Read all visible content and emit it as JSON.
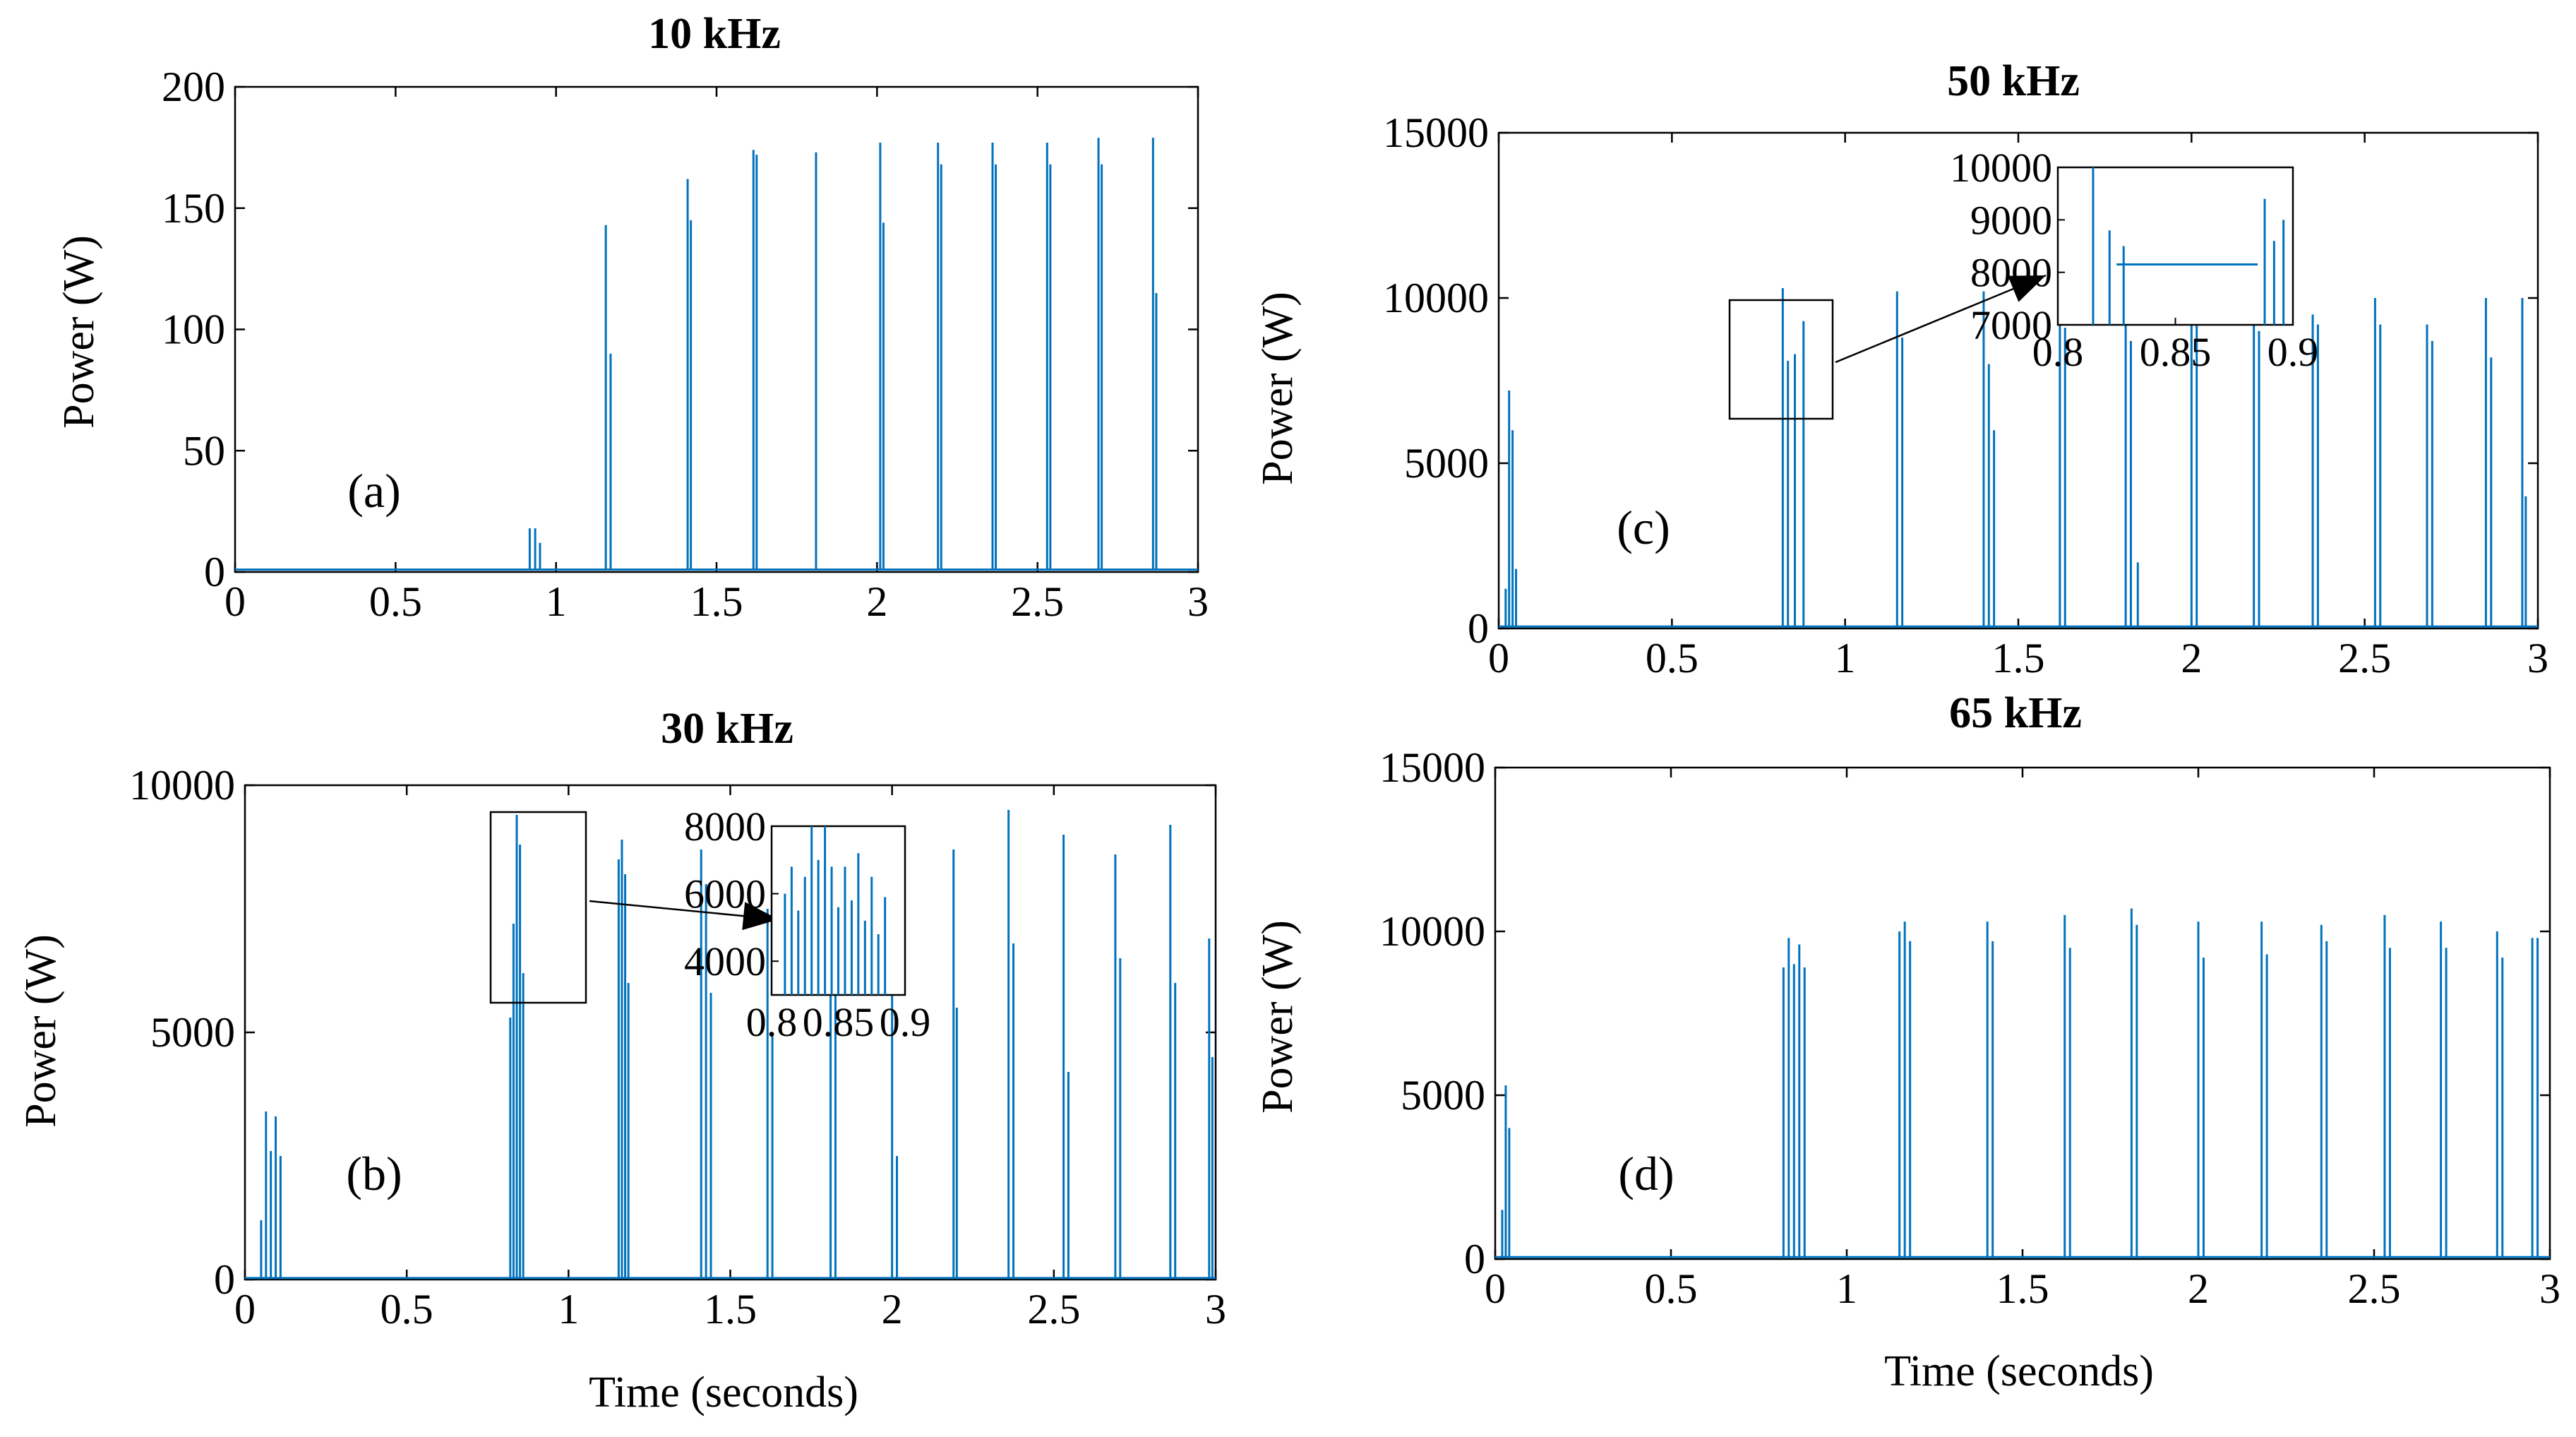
{
  "figure": {
    "xlabel": "Time (seconds)",
    "ylabel": "Power (W)",
    "line_color": "#0072BD"
  },
  "chart_data": [
    {
      "type": "line",
      "id": "a",
      "title": "10 kHz",
      "label": "(a)",
      "xlabel": "",
      "ylabel": "Power (W)",
      "xlim": [
        0,
        3
      ],
      "ylim": [
        0,
        200
      ],
      "xticks": [
        "0",
        "0.5",
        "1",
        "1.5",
        "2",
        "2.5",
        "3"
      ],
      "yticks": [
        "0",
        "50",
        "100",
        "150",
        "200"
      ],
      "baseline": 1,
      "series": [
        {
          "name": "Power",
          "pulses": [
            {
              "t": 0.918,
              "p": 18
            },
            {
              "t": 0.935,
              "p": 18
            },
            {
              "t": 0.95,
              "p": 12
            },
            {
              "t": 1.155,
              "p": 143
            },
            {
              "t": 1.17,
              "p": 90
            },
            {
              "t": 1.41,
              "p": 162
            },
            {
              "t": 1.42,
              "p": 145
            },
            {
              "t": 1.615,
              "p": 174
            },
            {
              "t": 1.625,
              "p": 172
            },
            {
              "t": 1.81,
              "p": 173
            },
            {
              "t": 2.01,
              "p": 177
            },
            {
              "t": 2.02,
              "p": 144
            },
            {
              "t": 2.19,
              "p": 177
            },
            {
              "t": 2.2,
              "p": 168
            },
            {
              "t": 2.36,
              "p": 177
            },
            {
              "t": 2.37,
              "p": 168
            },
            {
              "t": 2.53,
              "p": 177
            },
            {
              "t": 2.54,
              "p": 168
            },
            {
              "t": 2.69,
              "p": 179
            },
            {
              "t": 2.7,
              "p": 168
            },
            {
              "t": 2.86,
              "p": 179
            },
            {
              "t": 2.87,
              "p": 115
            }
          ]
        }
      ]
    },
    {
      "type": "line",
      "id": "b",
      "title": "30 kHz",
      "label": "(b)",
      "xlabel": "Time (seconds)",
      "ylabel": "Power (W)",
      "xlim": [
        0,
        3
      ],
      "ylim": [
        0,
        10000
      ],
      "xticks": [
        "0",
        "0.5",
        "1",
        "1.5",
        "2",
        "2.5",
        "3"
      ],
      "yticks": [
        "0",
        "5000",
        "10000"
      ],
      "baseline": 30,
      "series": [
        {
          "name": "Power",
          "pulses": [
            {
              "t": 0.05,
              "p": 1200
            },
            {
              "t": 0.065,
              "p": 3400
            },
            {
              "t": 0.08,
              "p": 2600
            },
            {
              "t": 0.095,
              "p": 3300
            },
            {
              "t": 0.11,
              "p": 2500
            },
            {
              "t": 0.82,
              "p": 5300
            },
            {
              "t": 0.83,
              "p": 7200
            },
            {
              "t": 0.84,
              "p": 9400
            },
            {
              "t": 0.85,
              "p": 8800
            },
            {
              "t": 0.86,
              "p": 6200
            },
            {
              "t": 1.155,
              "p": 8500
            },
            {
              "t": 1.165,
              "p": 8900
            },
            {
              "t": 1.175,
              "p": 8200
            },
            {
              "t": 1.185,
              "p": 6000
            },
            {
              "t": 1.41,
              "p": 8700
            },
            {
              "t": 1.425,
              "p": 8000
            },
            {
              "t": 1.44,
              "p": 5800
            },
            {
              "t": 1.615,
              "p": 7500
            },
            {
              "t": 1.63,
              "p": 5000
            },
            {
              "t": 1.81,
              "p": 8700
            },
            {
              "t": 1.825,
              "p": 7200
            },
            {
              "t": 2.0,
              "p": 9000
            },
            {
              "t": 2.015,
              "p": 2500
            },
            {
              "t": 2.19,
              "p": 8700
            },
            {
              "t": 2.2,
              "p": 5500
            },
            {
              "t": 2.36,
              "p": 9500
            },
            {
              "t": 2.375,
              "p": 6800
            },
            {
              "t": 2.53,
              "p": 9000
            },
            {
              "t": 2.545,
              "p": 4200
            },
            {
              "t": 2.69,
              "p": 8600
            },
            {
              "t": 2.705,
              "p": 6500
            },
            {
              "t": 2.86,
              "p": 9200
            },
            {
              "t": 2.875,
              "p": 6000
            },
            {
              "t": 2.98,
              "p": 6900
            },
            {
              "t": 2.99,
              "p": 4500
            }
          ]
        }
      ],
      "inset": {
        "xticks": [
          "0.8",
          "0.85",
          "0.9"
        ],
        "yticks": [
          "4000",
          "6000",
          "8000"
        ],
        "xlim": [
          0.8,
          0.9
        ],
        "ylim": [
          3000,
          8000
        ],
        "pulses": [
          {
            "t": 0.81,
            "p": 6000
          },
          {
            "t": 0.815,
            "p": 6800
          },
          {
            "t": 0.82,
            "p": 5500
          },
          {
            "t": 0.825,
            "p": 6500
          },
          {
            "t": 0.83,
            "p": 8000
          },
          {
            "t": 0.835,
            "p": 7000
          },
          {
            "t": 0.84,
            "p": 8000
          },
          {
            "t": 0.845,
            "p": 6800
          },
          {
            "t": 0.85,
            "p": 5600
          },
          {
            "t": 0.855,
            "p": 6800
          },
          {
            "t": 0.86,
            "p": 5800
          },
          {
            "t": 0.865,
            "p": 7200
          },
          {
            "t": 0.87,
            "p": 5200
          },
          {
            "t": 0.875,
            "p": 6500
          },
          {
            "t": 0.88,
            "p": 4800
          },
          {
            "t": 0.885,
            "p": 5900
          }
        ]
      }
    },
    {
      "type": "line",
      "id": "c",
      "title": "50 kHz",
      "label": "(c)",
      "xlabel": "",
      "ylabel": "Power (W)",
      "xlim": [
        0,
        3
      ],
      "ylim": [
        0,
        15000
      ],
      "xticks": [
        "0",
        "0.5",
        "1",
        "1.5",
        "2",
        "2.5",
        "3"
      ],
      "yticks": [
        "0",
        "5000",
        "10000",
        "15000"
      ],
      "baseline": 60,
      "series": [
        {
          "name": "Power",
          "pulses": [
            {
              "t": 0.02,
              "p": 1200
            },
            {
              "t": 0.03,
              "p": 7200
            },
            {
              "t": 0.04,
              "p": 6000
            },
            {
              "t": 0.05,
              "p": 1800
            },
            {
              "t": 0.82,
              "p": 10300
            },
            {
              "t": 0.835,
              "p": 8100
            },
            {
              "t": 0.855,
              "p": 8300
            },
            {
              "t": 0.88,
              "p": 9300
            },
            {
              "t": 1.15,
              "p": 10200
            },
            {
              "t": 1.165,
              "p": 8800
            },
            {
              "t": 1.4,
              "p": 10200
            },
            {
              "t": 1.415,
              "p": 8000
            },
            {
              "t": 1.43,
              "p": 6000
            },
            {
              "t": 1.62,
              "p": 10000
            },
            {
              "t": 1.635,
              "p": 9100
            },
            {
              "t": 1.81,
              "p": 10300
            },
            {
              "t": 1.825,
              "p": 8700
            },
            {
              "t": 1.845,
              "p": 2000
            },
            {
              "t": 2.0,
              "p": 10200
            },
            {
              "t": 2.015,
              "p": 9200
            },
            {
              "t": 2.18,
              "p": 10200
            },
            {
              "t": 2.195,
              "p": 9000
            },
            {
              "t": 2.35,
              "p": 9500
            },
            {
              "t": 2.365,
              "p": 9200
            },
            {
              "t": 2.53,
              "p": 10000
            },
            {
              "t": 2.545,
              "p": 9200
            },
            {
              "t": 2.68,
              "p": 9200
            },
            {
              "t": 2.695,
              "p": 8700
            },
            {
              "t": 2.85,
              "p": 10000
            },
            {
              "t": 2.865,
              "p": 8200
            },
            {
              "t": 2.955,
              "p": 10000
            },
            {
              "t": 2.965,
              "p": 4000
            }
          ]
        }
      ],
      "inset": {
        "xticks": [
          "0.8",
          "0.85",
          "0.9"
        ],
        "yticks": [
          "7000",
          "8000",
          "9000",
          "10000"
        ],
        "xlim": [
          0.8,
          0.9
        ],
        "ylim": [
          7000,
          10000
        ],
        "pulses": [
          {
            "t": 0.815,
            "p": 10000
          },
          {
            "t": 0.822,
            "p": 8800
          },
          {
            "t": 0.828,
            "p": 8500
          },
          {
            "t": 0.888,
            "p": 9400
          },
          {
            "t": 0.892,
            "p": 8600
          },
          {
            "t": 0.896,
            "p": 9000
          }
        ],
        "plateau": {
          "t0": 0.825,
          "t1": 0.885,
          "p": 8150
        }
      }
    },
    {
      "type": "line",
      "id": "d",
      "title": "65 kHz",
      "label": "(d)",
      "xlabel": "Time (seconds)",
      "ylabel": "Power (W)",
      "xlim": [
        0,
        3
      ],
      "ylim": [
        0,
        15000
      ],
      "xticks": [
        "0",
        "0.5",
        "1",
        "1.5",
        "2",
        "2.5",
        "3"
      ],
      "yticks": [
        "0",
        "5000",
        "10000",
        "15000"
      ],
      "baseline": 60,
      "series": [
        {
          "name": "Power",
          "pulses": [
            {
              "t": 0.02,
              "p": 1500
            },
            {
              "t": 0.03,
              "p": 5300
            },
            {
              "t": 0.04,
              "p": 4000
            },
            {
              "t": 0.82,
              "p": 8900
            },
            {
              "t": 0.835,
              "p": 9800
            },
            {
              "t": 0.85,
              "p": 9000
            },
            {
              "t": 0.865,
              "p": 9600
            },
            {
              "t": 0.88,
              "p": 8900
            },
            {
              "t": 1.15,
              "p": 10000
            },
            {
              "t": 1.165,
              "p": 10300
            },
            {
              "t": 1.18,
              "p": 9700
            },
            {
              "t": 1.4,
              "p": 10300
            },
            {
              "t": 1.415,
              "p": 9700
            },
            {
              "t": 1.62,
              "p": 10500
            },
            {
              "t": 1.635,
              "p": 9500
            },
            {
              "t": 1.81,
              "p": 10700
            },
            {
              "t": 1.825,
              "p": 10200
            },
            {
              "t": 2.0,
              "p": 10300
            },
            {
              "t": 2.015,
              "p": 9200
            },
            {
              "t": 2.18,
              "p": 10300
            },
            {
              "t": 2.195,
              "p": 9300
            },
            {
              "t": 2.35,
              "p": 10200
            },
            {
              "t": 2.365,
              "p": 9700
            },
            {
              "t": 2.53,
              "p": 10500
            },
            {
              "t": 2.545,
              "p": 9500
            },
            {
              "t": 2.69,
              "p": 10300
            },
            {
              "t": 2.705,
              "p": 9500
            },
            {
              "t": 2.85,
              "p": 10000
            },
            {
              "t": 2.865,
              "p": 9200
            },
            {
              "t": 2.95,
              "p": 9800
            },
            {
              "t": 2.965,
              "p": 9800
            }
          ]
        }
      ]
    }
  ]
}
